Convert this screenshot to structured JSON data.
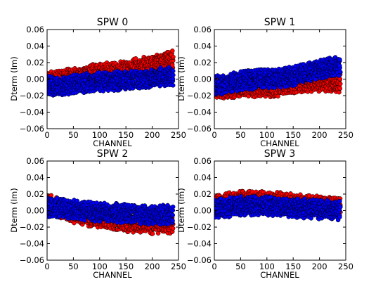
{
  "chart_data": [
    {
      "type": "scatter",
      "title": "SPW 0",
      "xlabel": "CHANNEL",
      "ylabel": "Dterm (Im)",
      "xlim": [
        0,
        250
      ],
      "ylim": [
        -0.06,
        0.06
      ],
      "xticks": [
        "0",
        "50",
        "100",
        "150",
        "200",
        "250"
      ],
      "yticks": [
        "0.06",
        "0.04",
        "0.02",
        "0.00",
        "−0.02",
        "−0.04",
        "−0.06"
      ],
      "channels": 240,
      "series": [
        {
          "color": "#ff0000",
          "values": [
            -0.003,
            -0.001,
            0.003,
            0.006,
            0.008,
            0.009,
            0.012,
            0.016,
            0.021,
            0.024
          ]
        },
        {
          "color": "#0000ff",
          "values": [
            -0.008,
            -0.009,
            -0.006,
            -0.004,
            -0.003,
            -0.002,
            -0.001,
            0.0,
            0.002,
            0.004
          ]
        }
      ]
    },
    {
      "type": "scatter",
      "title": "SPW 1",
      "xlabel": "CHANNEL",
      "ylabel": "Dterm (Im)",
      "xlim": [
        0,
        250
      ],
      "ylim": [
        -0.06,
        0.06
      ],
      "xticks": [
        "0",
        "50",
        "100",
        "150",
        "200",
        "250"
      ],
      "yticks": [
        "0.06",
        "0.04",
        "0.02",
        "0.00",
        "−0.02",
        "−0.04",
        "−0.06"
      ],
      "channels": 240,
      "series": [
        {
          "color": "#ff0000",
          "values": [
            -0.012,
            -0.012,
            -0.01,
            -0.01,
            -0.01,
            -0.008,
            -0.005,
            -0.004,
            -0.004,
            -0.005
          ]
        },
        {
          "color": "#0000ff",
          "values": [
            -0.008,
            -0.005,
            -0.002,
            0.0,
            0.001,
            0.002,
            0.005,
            0.01,
            0.014,
            0.016
          ]
        }
      ]
    },
    {
      "type": "scatter",
      "title": "SPW 2",
      "xlabel": "CHANNEL",
      "ylabel": "Dterm (Im)",
      "xlim": [
        0,
        250
      ],
      "ylim": [
        -0.06,
        0.06
      ],
      "xticks": [
        "0",
        "50",
        "100",
        "150",
        "200",
        "250"
      ],
      "yticks": [
        "0.06",
        "0.04",
        "0.02",
        "0.00",
        "−0.02",
        "−0.04",
        "−0.06"
      ],
      "channels": 240,
      "series": [
        {
          "color": "#ff0000",
          "values": [
            0.008,
            0.002,
            -0.004,
            -0.008,
            -0.01,
            -0.013,
            -0.015,
            -0.016,
            -0.017,
            -0.016
          ]
        },
        {
          "color": "#0000ff",
          "values": [
            0.004,
            0.003,
            0.001,
            -0.001,
            -0.002,
            -0.003,
            -0.004,
            -0.005,
            -0.005,
            -0.005
          ]
        }
      ]
    },
    {
      "type": "scatter",
      "title": "SPW 3",
      "xlabel": "CHANNEL",
      "ylabel": "Dterm (Im)",
      "xlim": [
        0,
        250
      ],
      "ylim": [
        -0.06,
        0.06
      ],
      "xticks": [
        "0",
        "50",
        "100",
        "150",
        "200",
        "250"
      ],
      "yticks": [
        "0.06",
        "0.04",
        "0.02",
        "0.00",
        "−0.02",
        "−0.04",
        "−0.06"
      ],
      "channels": 240,
      "series": [
        {
          "color": "#ff0000",
          "values": [
            0.006,
            0.01,
            0.012,
            0.012,
            0.011,
            0.01,
            0.008,
            0.007,
            0.006,
            0.004
          ]
        },
        {
          "color": "#0000ff",
          "values": [
            0.002,
            0.004,
            0.006,
            0.006,
            0.005,
            0.004,
            0.003,
            0.002,
            0.001,
            0.0
          ]
        }
      ]
    }
  ]
}
